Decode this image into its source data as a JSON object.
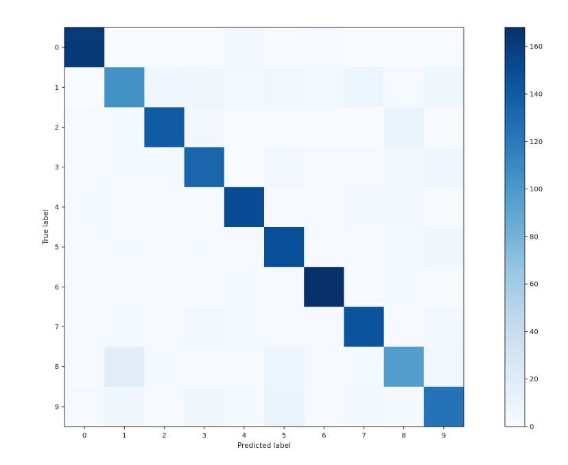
{
  "chart_data": {
    "type": "heatmap",
    "title": "",
    "xlabel": "Predicted label",
    "ylabel": "True label",
    "x_categories": [
      "0",
      "1",
      "2",
      "3",
      "4",
      "5",
      "6",
      "7",
      "8",
      "9"
    ],
    "y_categories": [
      "0",
      "1",
      "2",
      "3",
      "4",
      "5",
      "6",
      "7",
      "8",
      "9"
    ],
    "values": [
      [
        162,
        0,
        0,
        0,
        4,
        1,
        2,
        0,
        0,
        0
      ],
      [
        0,
        105,
        6,
        7,
        3,
        5,
        3,
        9,
        2,
        7
      ],
      [
        1,
        3,
        140,
        5,
        0,
        0,
        0,
        0,
        10,
        1
      ],
      [
        1,
        3,
        3,
        133,
        0,
        5,
        2,
        2,
        4,
        6
      ],
      [
        3,
        2,
        1,
        1,
        150,
        2,
        1,
        4,
        4,
        1
      ],
      [
        2,
        3,
        2,
        3,
        2,
        148,
        1,
        2,
        3,
        7
      ],
      [
        2,
        2,
        2,
        1,
        3,
        1,
        168,
        1,
        3,
        1
      ],
      [
        1,
        3,
        2,
        4,
        3,
        2,
        2,
        145,
        2,
        4
      ],
      [
        1,
        18,
        3,
        1,
        1,
        8,
        2,
        3,
        96,
        5
      ],
      [
        2,
        7,
        1,
        7,
        3,
        10,
        1,
        4,
        3,
        125
      ]
    ],
    "colorbar": {
      "colormap": "Blues",
      "min": 0,
      "max": 168,
      "ticks": [
        0,
        20,
        40,
        60,
        80,
        100,
        120,
        140,
        160
      ]
    },
    "grid": false
  }
}
